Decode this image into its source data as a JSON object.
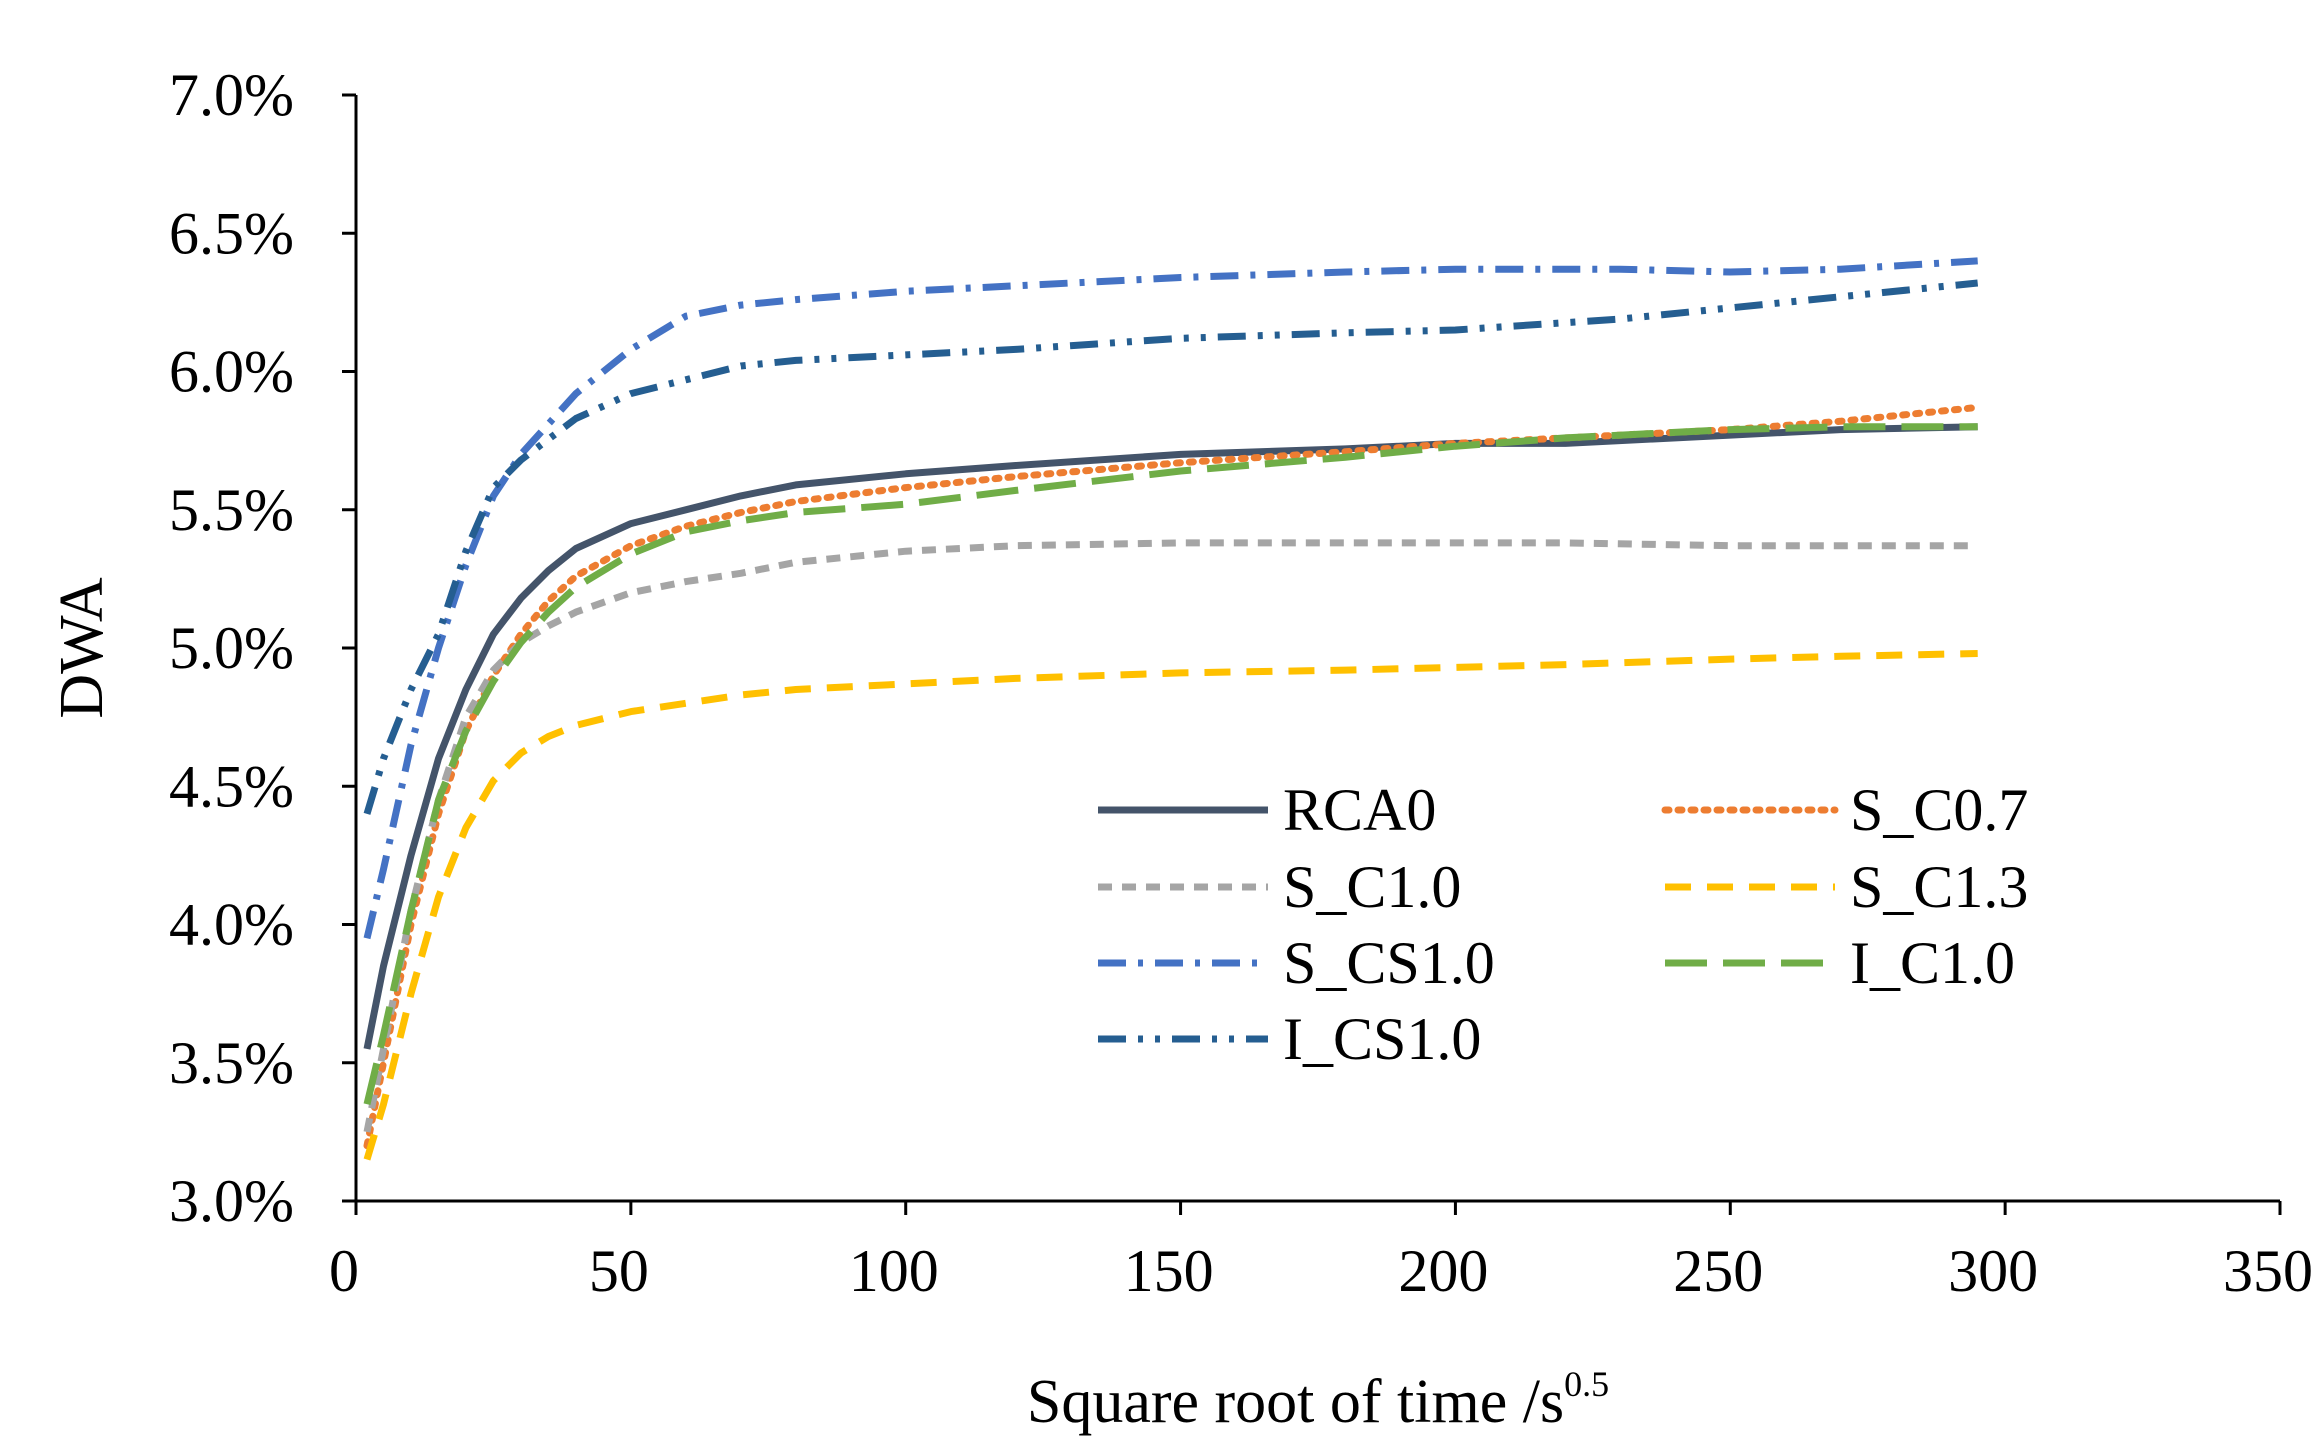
{
  "chart_data": {
    "type": "line",
    "title": "",
    "xlabel": "Square root of time /s",
    "xlabel_superscript": "0.5",
    "ylabel": "DWA",
    "xlim": [
      0,
      350
    ],
    "ylim": [
      3.0,
      7.0
    ],
    "x_ticks": [
      0,
      50,
      100,
      150,
      200,
      250,
      300,
      350
    ],
    "x_tick_labels": [
      "0",
      "50",
      "100",
      "150",
      "200",
      "250",
      "300",
      "350"
    ],
    "y_ticks": [
      3.0,
      3.5,
      4.0,
      4.5,
      5.0,
      5.5,
      6.0,
      6.5,
      7.0
    ],
    "y_tick_labels": [
      "3.0%",
      "3.5%",
      "4.0%",
      "4.5%",
      "5.0%",
      "5.5%",
      "6.0%",
      "6.5%",
      "7.0%"
    ],
    "grid": false,
    "legend_position": "center-right",
    "series": [
      {
        "name": "RCA0",
        "color": "#44546a",
        "dash": "solid",
        "x": [
          2,
          5,
          10,
          15,
          20,
          25,
          30,
          35,
          40,
          50,
          60,
          70,
          80,
          100,
          120,
          150,
          180,
          200,
          220,
          250,
          270,
          295
        ],
        "y": [
          3.55,
          3.85,
          4.25,
          4.6,
          4.85,
          5.05,
          5.18,
          5.28,
          5.36,
          5.45,
          5.5,
          5.55,
          5.59,
          5.63,
          5.66,
          5.7,
          5.72,
          5.74,
          5.74,
          5.77,
          5.79,
          5.8
        ]
      },
      {
        "name": "S_C0.7",
        "color": "#ed7d31",
        "dash": "dotted",
        "x": [
          2,
          5,
          10,
          15,
          20,
          25,
          30,
          35,
          40,
          50,
          60,
          70,
          80,
          100,
          120,
          150,
          180,
          200,
          220,
          250,
          270,
          295
        ],
        "y": [
          3.2,
          3.5,
          4.0,
          4.4,
          4.7,
          4.9,
          5.05,
          5.17,
          5.26,
          5.37,
          5.44,
          5.49,
          5.53,
          5.58,
          5.62,
          5.67,
          5.71,
          5.74,
          5.76,
          5.79,
          5.82,
          5.87
        ]
      },
      {
        "name": "S_C1.0",
        "color": "#a5a5a5",
        "dash": "short-dash",
        "x": [
          2,
          5,
          10,
          15,
          20,
          25,
          30,
          35,
          40,
          50,
          60,
          70,
          80,
          100,
          120,
          150,
          180,
          200,
          220,
          250,
          270,
          295
        ],
        "y": [
          3.25,
          3.55,
          4.05,
          4.45,
          4.75,
          4.92,
          5.02,
          5.08,
          5.13,
          5.2,
          5.24,
          5.27,
          5.31,
          5.35,
          5.37,
          5.38,
          5.38,
          5.38,
          5.38,
          5.37,
          5.37,
          5.37
        ]
      },
      {
        "name": "S_C1.3",
        "color": "#ffc000",
        "dash": "dash",
        "x": [
          2,
          5,
          10,
          15,
          20,
          25,
          30,
          35,
          40,
          50,
          60,
          70,
          80,
          100,
          120,
          150,
          180,
          200,
          220,
          250,
          270,
          295
        ],
        "y": [
          3.15,
          3.35,
          3.75,
          4.1,
          4.35,
          4.52,
          4.62,
          4.68,
          4.72,
          4.77,
          4.8,
          4.83,
          4.85,
          4.87,
          4.89,
          4.91,
          4.92,
          4.93,
          4.94,
          4.96,
          4.97,
          4.98
        ]
      },
      {
        "name": "S_CS1.0",
        "color": "#4472c4",
        "dash": "dash-dot",
        "x": [
          2,
          5,
          10,
          15,
          20,
          25,
          30,
          40,
          50,
          60,
          70,
          80,
          100,
          120,
          150,
          180,
          200,
          230,
          250,
          270,
          295
        ],
        "y": [
          3.95,
          4.2,
          4.65,
          5.0,
          5.3,
          5.55,
          5.7,
          5.92,
          6.08,
          6.2,
          6.24,
          6.26,
          6.29,
          6.31,
          6.34,
          6.36,
          6.37,
          6.37,
          6.36,
          6.37,
          6.4
        ]
      },
      {
        "name": "I_C1.0",
        "color": "#70ad47",
        "dash": "long-dash",
        "x": [
          2,
          5,
          10,
          15,
          20,
          25,
          30,
          35,
          40,
          50,
          60,
          70,
          80,
          100,
          120,
          150,
          180,
          200,
          220,
          250,
          270,
          295
        ],
        "y": [
          3.35,
          3.6,
          4.05,
          4.45,
          4.7,
          4.88,
          5.02,
          5.13,
          5.22,
          5.34,
          5.42,
          5.46,
          5.49,
          5.52,
          5.57,
          5.64,
          5.69,
          5.73,
          5.76,
          5.79,
          5.8,
          5.8
        ]
      },
      {
        "name": "I_CS1.0",
        "color": "#255e91",
        "dash": "dash-dot-dot",
        "x": [
          2,
          5,
          10,
          15,
          20,
          25,
          30,
          40,
          50,
          60,
          70,
          80,
          100,
          120,
          150,
          180,
          200,
          230,
          250,
          270,
          295
        ],
        "y": [
          4.4,
          4.6,
          4.85,
          5.05,
          5.35,
          5.58,
          5.68,
          5.83,
          5.92,
          5.97,
          6.02,
          6.04,
          6.06,
          6.08,
          6.12,
          6.14,
          6.15,
          6.19,
          6.23,
          6.27,
          6.32
        ]
      }
    ]
  }
}
